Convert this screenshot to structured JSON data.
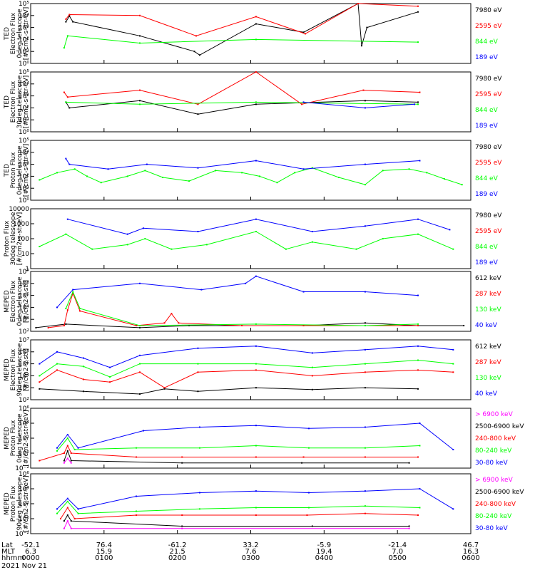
{
  "date_label": "2021 Nov 21",
  "footer": {
    "row_labels": [
      "Lat",
      "MLT",
      "hhmm"
    ],
    "columns": [
      {
        "lat": "-52.1",
        "mlt": "6.3",
        "hhmm": "0000"
      },
      {
        "lat": "76.4",
        "mlt": "15.9",
        "hhmm": "0100"
      },
      {
        "lat": "-61.2",
        "mlt": "21.5",
        "hhmm": "0200"
      },
      {
        "lat": "33.2",
        "mlt": "7.6",
        "hhmm": "0300"
      },
      {
        "lat": "-5.9",
        "mlt": "19.4",
        "hhmm": "0400"
      },
      {
        "lat": "-21.4",
        "mlt": "7.0",
        "hhmm": "0500"
      },
      {
        "lat": "46.7",
        "mlt": "16.3",
        "hhmm": "0600"
      }
    ]
  },
  "colors": {
    "black": "#000000",
    "red": "#ff0000",
    "green": "#00ff00",
    "blue": "#0000ff",
    "magenta": "#ff00ff"
  },
  "chart_data": [
    {
      "type": "line",
      "ylabel": [
        "TED",
        "Electron Flux",
        "0deg telescope",
        "[#/cm2-s-str-eV]"
      ],
      "ylim": [
        1,
        100000
      ],
      "yscale": "log",
      "ytick_labels": [
        "10⁰",
        "10¹",
        "10²",
        "10³",
        "10⁴",
        "10⁵"
      ],
      "ytick_values": [
        1,
        10,
        100,
        1000,
        10000,
        100000
      ],
      "series": [
        {
          "name": "7980 eV",
          "color": "black",
          "x": [
            20,
            22,
            24,
            62,
            93,
            96,
            128,
            155,
            186,
            188,
            191,
            220
          ],
          "y": [
            3000,
            9000,
            3000,
            200,
            10,
            5,
            2000,
            400,
            100000,
            30,
            1000,
            20000
          ]
        },
        {
          "name": "2595 eV",
          "color": "red",
          "x": [
            20,
            22,
            62,
            94,
            128,
            156,
            186,
            220
          ],
          "y": [
            5000,
            12000,
            10000,
            200,
            8000,
            300,
            100000,
            60000
          ]
        },
        {
          "name": "844 eV",
          "color": "green",
          "x": [
            19,
            21,
            62,
            128,
            220
          ],
          "y": [
            20,
            200,
            50,
            100,
            60
          ]
        },
        {
          "name": "189 eV",
          "color": "blue",
          "x": [],
          "y": []
        }
      ]
    },
    {
      "type": "line",
      "ylabel": [
        "TED",
        "Electron Flux",
        "30deg telescope",
        "[#/cm2-s-str-eV]"
      ],
      "ylim": [
        1,
        100000
      ],
      "yscale": "log",
      "ytick_labels": [
        "10⁰",
        "10¹",
        "10²",
        "10³",
        "10⁴",
        "10⁵"
      ],
      "ytick_values": [
        1,
        10,
        100,
        1000,
        10000,
        100000
      ],
      "series": [
        {
          "name": "7980 eV",
          "color": "black",
          "x": [
            20,
            22,
            62,
            95,
            128,
            190,
            220
          ],
          "y": [
            300,
            100,
            400,
            30,
            200,
            400,
            300
          ]
        },
        {
          "name": "2595 eV",
          "color": "red",
          "x": [
            19,
            21,
            62,
            95,
            128,
            154,
            189,
            221
          ],
          "y": [
            2000,
            800,
            3000,
            200,
            100000,
            200,
            3000,
            2000
          ]
        },
        {
          "name": "844 eV",
          "color": "green",
          "x": [
            20,
            62,
            128,
            220
          ],
          "y": [
            300,
            200,
            300,
            200
          ]
        },
        {
          "name": "189 eV",
          "color": "blue",
          "x": [
            155,
            190,
            218
          ],
          "y": [
            300,
            100,
            200
          ]
        }
      ]
    },
    {
      "type": "line",
      "ylabel": [
        "TED",
        "Proton Flux",
        "0deg telescope",
        "[#/cm2-s-str-eV]"
      ],
      "ylim": [
        1,
        100000
      ],
      "yscale": "log",
      "ytick_labels": [
        "10⁰",
        "10¹",
        "10²",
        "10³",
        "10⁴",
        "10⁵"
      ],
      "ytick_values": [
        1,
        10,
        100,
        1000,
        10000,
        100000
      ],
      "series": [
        {
          "name": "7980 eV",
          "color": "black",
          "x": [],
          "y": []
        },
        {
          "name": "2595 eV",
          "color": "red",
          "x": [],
          "y": []
        },
        {
          "name": "844 eV",
          "color": "green",
          "x": [
            5,
            15,
            25,
            32,
            40,
            55,
            65,
            75,
            90,
            105,
            120,
            130,
            140,
            150,
            160,
            175,
            190,
            200,
            215,
            225,
            235,
            245
          ],
          "y": [
            50,
            200,
            400,
            100,
            30,
            100,
            300,
            80,
            40,
            300,
            200,
            100,
            30,
            200,
            500,
            80,
            20,
            300,
            400,
            200,
            60,
            20
          ]
        },
        {
          "name": "189 eV",
          "color": "blue",
          "x": [
            20,
            22,
            44,
            66,
            95,
            128,
            155,
            190,
            221
          ],
          "y": [
            3000,
            1000,
            400,
            1000,
            500,
            2000,
            400,
            1000,
            2000
          ]
        }
      ]
    },
    {
      "type": "line",
      "ylabel": [
        "Proton Flux",
        "30deg telescope",
        "[#/cm2-s-str-eV]"
      ],
      "ylim": [
        1,
        10000
      ],
      "yscale": "log",
      "ytick_labels": [
        "1",
        "10",
        "100",
        "1000",
        "10000"
      ],
      "ytick_values": [
        1,
        10,
        100,
        1000,
        10000
      ],
      "series": [
        {
          "name": "7980 eV",
          "color": "black",
          "x": [],
          "y": []
        },
        {
          "name": "2595 eV",
          "color": "red",
          "x": [],
          "y": []
        },
        {
          "name": "844 eV",
          "color": "green",
          "x": [
            5,
            20,
            35,
            55,
            65,
            80,
            100,
            128,
            145,
            160,
            185,
            200,
            220,
            240
          ],
          "y": [
            30,
            200,
            20,
            40,
            100,
            20,
            40,
            300,
            20,
            60,
            20,
            100,
            200,
            20
          ]
        },
        {
          "name": "189 eV",
          "color": "blue",
          "x": [
            21,
            55,
            64,
            95,
            128,
            160,
            190,
            220,
            238
          ],
          "y": [
            2000,
            200,
            500,
            300,
            2000,
            300,
            700,
            2000,
            400
          ]
        }
      ]
    },
    {
      "type": "line",
      "ylabel": [
        "MEPED",
        "Electron Flux",
        "0deg telescope",
        "[#/cm2-s-str]"
      ],
      "ylim": [
        100,
        10000000
      ],
      "yscale": "log",
      "ytick_labels": [
        "10²",
        "10³",
        "10⁴",
        "10⁵",
        "10⁶",
        "10⁷"
      ],
      "ytick_values": [
        100,
        1000,
        10000,
        100000,
        1000000,
        10000000
      ],
      "series": [
        {
          "name": "612 keV",
          "color": "black",
          "x": [
            3,
            20,
            62,
            90,
            155,
            190,
            220,
            246
          ],
          "y": [
            200,
            400,
            200,
            300,
            300,
            500,
            300,
            300
          ]
        },
        {
          "name": "287 keV",
          "color": "red",
          "x": [
            10,
            19,
            21,
            24,
            28,
            60,
            76,
            80,
            84,
            120,
            155,
            190,
            220
          ],
          "y": [
            200,
            300,
            6000,
            150000,
            5000,
            300,
            500,
            3000,
            500,
            300,
            300,
            300,
            300
          ]
        },
        {
          "name": "130 keV",
          "color": "green",
          "x": [
            20,
            24,
            28,
            62,
            128,
            190,
            220
          ],
          "y": [
            8000,
            200000,
            8000,
            300,
            400,
            300,
            400
          ]
        },
        {
          "name": "40 keV",
          "color": "blue",
          "x": [
            15,
            24,
            62,
            97,
            122,
            128,
            155,
            190,
            220
          ],
          "y": [
            10000,
            300000,
            1000000,
            300000,
            1000000,
            4000000,
            200000,
            200000,
            100000
          ]
        }
      ]
    },
    {
      "type": "line",
      "ylabel": [
        "MEPED",
        "Electron Flux",
        "90deg telescope",
        "[#/cm2-s-str]"
      ],
      "ylim": [
        100,
        10000000
      ],
      "yscale": "log",
      "ytick_labels": [
        "10²",
        "10³",
        "10⁴",
        "10⁵",
        "10⁶",
        "10⁷"
      ],
      "ytick_values": [
        100,
        1000,
        10000,
        100000,
        1000000,
        10000000
      ],
      "series": [
        {
          "name": "612 keV",
          "color": "black",
          "x": [
            5,
            30,
            62,
            76,
            95,
            128,
            160,
            190,
            220
          ],
          "y": [
            800,
            500,
            300,
            800,
            500,
            1000,
            700,
            1000,
            800
          ]
        },
        {
          "name": "287 keV",
          "color": "red",
          "x": [
            5,
            15,
            30,
            45,
            62,
            76,
            95,
            128,
            160,
            190,
            220,
            240
          ],
          "y": [
            3000,
            30000,
            5000,
            3000,
            20000,
            1000,
            20000,
            30000,
            10000,
            20000,
            30000,
            20000
          ]
        },
        {
          "name": "130 keV",
          "color": "green",
          "x": [
            5,
            15,
            30,
            45,
            62,
            95,
            128,
            160,
            190,
            220,
            240
          ],
          "y": [
            10000,
            100000,
            60000,
            8000,
            100000,
            100000,
            100000,
            50000,
            100000,
            200000,
            100000
          ]
        },
        {
          "name": "40 keV",
          "color": "blue",
          "x": [
            5,
            15,
            30,
            45,
            62,
            95,
            128,
            160,
            190,
            220,
            240
          ],
          "y": [
            100000,
            1000000,
            300000,
            50000,
            500000,
            2000000,
            3000000,
            800000,
            1500000,
            3000000,
            1500000
          ]
        }
      ]
    },
    {
      "type": "line",
      "ylabel": [
        "MEPED",
        "Proton Flux",
        "0deg telescope",
        "[#/cm2-s-str-keV]"
      ],
      "ylim": [
        0.01,
        1000000
      ],
      "yscale": "log",
      "ytick_labels": [
        "10⁻²",
        "10⁰",
        "10²",
        "10⁴",
        "10⁶"
      ],
      "ytick_values": [
        0.01,
        1,
        100,
        10000,
        1000000
      ],
      "series": [
        {
          "name": "> 6900 keV",
          "color": "magenta",
          "x": [
            19,
            21,
            23
          ],
          "y": [
            0.05,
            0.2,
            0.05
          ]
        },
        {
          "name": "2500-6900 keV",
          "color": "black",
          "x": [
            19,
            21,
            23,
            86,
            154,
            215
          ],
          "y": [
            0.1,
            2,
            0.1,
            0.05,
            0.05,
            0.05
          ]
        },
        {
          "name": "240-800 keV",
          "color": "red",
          "x": [
            5,
            19,
            21,
            23,
            60,
            86,
            128,
            155,
            190,
            220
          ],
          "y": [
            0.1,
            1,
            10,
            1,
            0.3,
            0.3,
            0.3,
            0.3,
            0.3,
            0.3
          ]
        },
        {
          "name": "80-240 keV",
          "color": "green",
          "x": [
            15,
            21,
            25,
            60,
            96,
            128,
            158,
            190,
            221
          ],
          "y": [
            2,
            100,
            3,
            5,
            5,
            10,
            5,
            5,
            10
          ]
        },
        {
          "name": "30-80 keV",
          "color": "blue",
          "x": [
            15,
            21,
            27,
            64,
            96,
            128,
            158,
            190,
            221,
            240
          ],
          "y": [
            5,
            300,
            5,
            1000,
            3000,
            5000,
            2000,
            3000,
            10000,
            3
          ]
        }
      ]
    },
    {
      "type": "line",
      "ylabel": [
        "MEPED",
        "Proton Flux",
        "90deg telescope",
        "[#/cm2-s-str-keV]"
      ],
      "ylim": [
        0.01,
        1000000
      ],
      "yscale": "log",
      "ytick_labels": [
        "10⁻²",
        "10⁰",
        "10²",
        "10⁴",
        "10⁶"
      ],
      "ytick_values": [
        0.01,
        1,
        100,
        10000,
        1000000
      ],
      "series": [
        {
          "name": "> 6900 keV",
          "color": "magenta",
          "x": [
            19,
            21,
            23,
            86,
            215
          ],
          "y": [
            0.05,
            0.5,
            0.05,
            0.05,
            0.05
          ]
        },
        {
          "name": "2500-6900 keV",
          "color": "black",
          "x": [
            19,
            21,
            23,
            86,
            160,
            215
          ],
          "y": [
            0.5,
            3,
            0.5,
            0.1,
            0.1,
            0.1
          ]
        },
        {
          "name": "240-800 keV",
          "color": "red",
          "x": [
            17,
            21,
            25,
            60,
            86,
            128,
            157,
            190,
            220
          ],
          "y": [
            1,
            30,
            1,
            3,
            3,
            3,
            3,
            5,
            3
          ]
        },
        {
          "name": "80-240 keV",
          "color": "green",
          "x": [
            15,
            21,
            27,
            60,
            96,
            128,
            158,
            190,
            221
          ],
          "y": [
            5,
            200,
            5,
            10,
            20,
            30,
            30,
            50,
            30
          ]
        },
        {
          "name": "30-80 keV",
          "color": "blue",
          "x": [
            15,
            21,
            27,
            60,
            96,
            128,
            158,
            190,
            221,
            240
          ],
          "y": [
            20,
            500,
            20,
            1000,
            3000,
            5000,
            3000,
            5000,
            10000,
            20
          ]
        }
      ]
    }
  ]
}
